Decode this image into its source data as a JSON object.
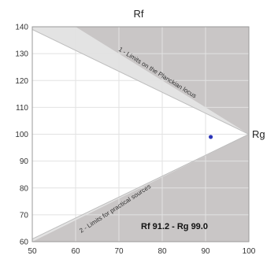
{
  "chart_data": {
    "type": "scatter",
    "title": "Rf",
    "xlabel": "",
    "ylabel": "",
    "right_label": "Rg",
    "xlim": [
      50,
      100
    ],
    "ylim": [
      60,
      140
    ],
    "x_ticks": [
      50,
      60,
      70,
      80,
      90,
      100
    ],
    "y_ticks": [
      60,
      70,
      80,
      90,
      100,
      110,
      120,
      130,
      140
    ],
    "grid": true,
    "point": {
      "x": 91.2,
      "y": 99.0
    },
    "readout": "Rf 91.2 - Rg 99.0",
    "annotations": [
      "1 - Limits on the Planckian locus",
      "2 - Limits for practical sources"
    ],
    "colors": {
      "outer_region": "#c9c6c6",
      "planckian_band": "#e3e3e3",
      "valid_region": "#ffffff",
      "point": "#2b35b8",
      "gridline": "#e2e2e2"
    }
  }
}
